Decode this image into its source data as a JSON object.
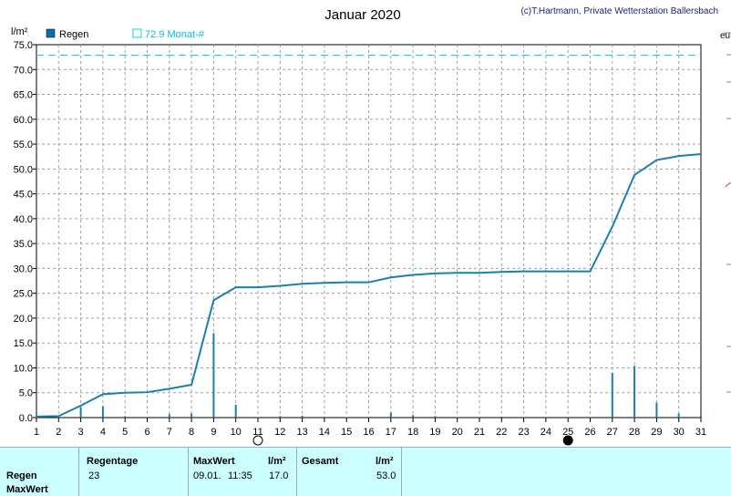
{
  "chart_data": {
    "type": "line",
    "title": "Januar 2020",
    "credit": "(c)T.Hartmann, Private Wetterstation Ballersbach",
    "ylabel": "l/m²",
    "ylim": [
      0,
      75
    ],
    "yticks": [
      "0.0",
      "5.0",
      "10.0",
      "15.0",
      "20.0",
      "25.0",
      "30.0",
      "35.0",
      "40.0",
      "45.0",
      "50.0",
      "55.0",
      "60.0",
      "65.0",
      "70.0",
      "75.0"
    ],
    "xlim": [
      1,
      31
    ],
    "xticks": [
      "1",
      "2",
      "3",
      "4",
      "5",
      "6",
      "7",
      "8",
      "9",
      "10",
      "11",
      "12",
      "13",
      "14",
      "15",
      "16",
      "17",
      "18",
      "19",
      "20",
      "21",
      "22",
      "23",
      "24",
      "25",
      "26",
      "27",
      "28",
      "29",
      "30",
      "31"
    ],
    "grid": true,
    "legend": [
      {
        "name": "Regen",
        "color": "#0e6fa8"
      },
      {
        "name": "72.9 Monat-#",
        "color": "#00d8e0"
      }
    ],
    "reference_line": {
      "label": "72.9 Monat-#",
      "value": 72.9,
      "color": "#00d8e0"
    },
    "series": [
      {
        "name": "Regen",
        "kind": "cumulative",
        "color": "#1a7fae",
        "x": [
          1,
          2,
          3,
          4,
          5,
          6,
          7,
          8,
          9,
          10,
          11,
          12,
          13,
          14,
          15,
          16,
          17,
          18,
          19,
          20,
          21,
          22,
          23,
          24,
          25,
          26,
          27,
          28,
          29,
          30,
          31
        ],
        "y": [
          0.2,
          0.3,
          2.4,
          4.7,
          5.0,
          5.1,
          5.8,
          6.6,
          23.6,
          26.2,
          26.2,
          26.5,
          26.9,
          27.1,
          27.2,
          27.2,
          28.2,
          28.7,
          29.0,
          29.1,
          29.1,
          29.3,
          29.4,
          29.4,
          29.4,
          29.4,
          38.4,
          48.8,
          51.8,
          52.6,
          53.0
        ]
      },
      {
        "name": "Regen",
        "kind": "daily",
        "color": "#1a7fae",
        "x": [
          1,
          2,
          3,
          4,
          5,
          6,
          7,
          8,
          9,
          10,
          11,
          12,
          13,
          14,
          15,
          16,
          17,
          18,
          19,
          20,
          21,
          22,
          23,
          24,
          25,
          26,
          27,
          28,
          29,
          30,
          31
        ],
        "y": [
          0.2,
          0.1,
          2.1,
          2.3,
          0.3,
          0.1,
          0.7,
          0.8,
          17.0,
          2.6,
          0.0,
          0.3,
          0.4,
          0.2,
          0.1,
          0.0,
          1.0,
          0.5,
          0.3,
          0.1,
          0.0,
          0.2,
          0.1,
          0.0,
          0.0,
          0.0,
          9.0,
          10.4,
          3.0,
          0.8,
          0.4
        ]
      }
    ],
    "moon_phases": [
      {
        "day": 11,
        "phase": "full-moon"
      },
      {
        "day": 25,
        "phase": "new-moon"
      }
    ]
  },
  "stats": {
    "row_regen": "Regen",
    "row_maxwert": "MaxWert",
    "regentage_header": "Regentage",
    "regentage_value": "23",
    "maxwert_header": "MaxWert",
    "maxwert_date": "09.01.",
    "maxwert_time": "11:35",
    "unit1": "l/m²",
    "maxwert_value": "17.0",
    "gesamt_header": "Gesamt",
    "unit2": "l/m²",
    "gesamt_value": "53.0"
  },
  "right_edge_text": "eu"
}
